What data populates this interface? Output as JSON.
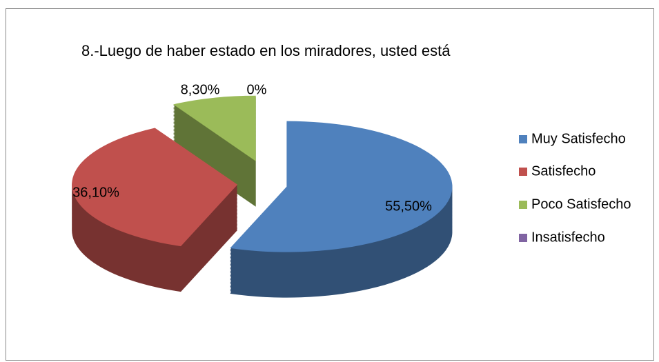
{
  "chart_data": {
    "type": "pie",
    "title": "8.-Luego de haber estado en los miradores, usted está",
    "categories": [
      "Muy Satisfecho",
      "Satisfecho",
      "Poco Satisfecho",
      "Insatisfecho"
    ],
    "values": [
      55.5,
      36.1,
      8.3,
      0
    ],
    "value_labels": [
      "55,50%",
      "36,10%",
      "8,30%",
      "0%"
    ],
    "colors": [
      "#4f81bd",
      "#c0504d",
      "#9bbb59",
      "#8064a2"
    ],
    "legend": "right"
  }
}
